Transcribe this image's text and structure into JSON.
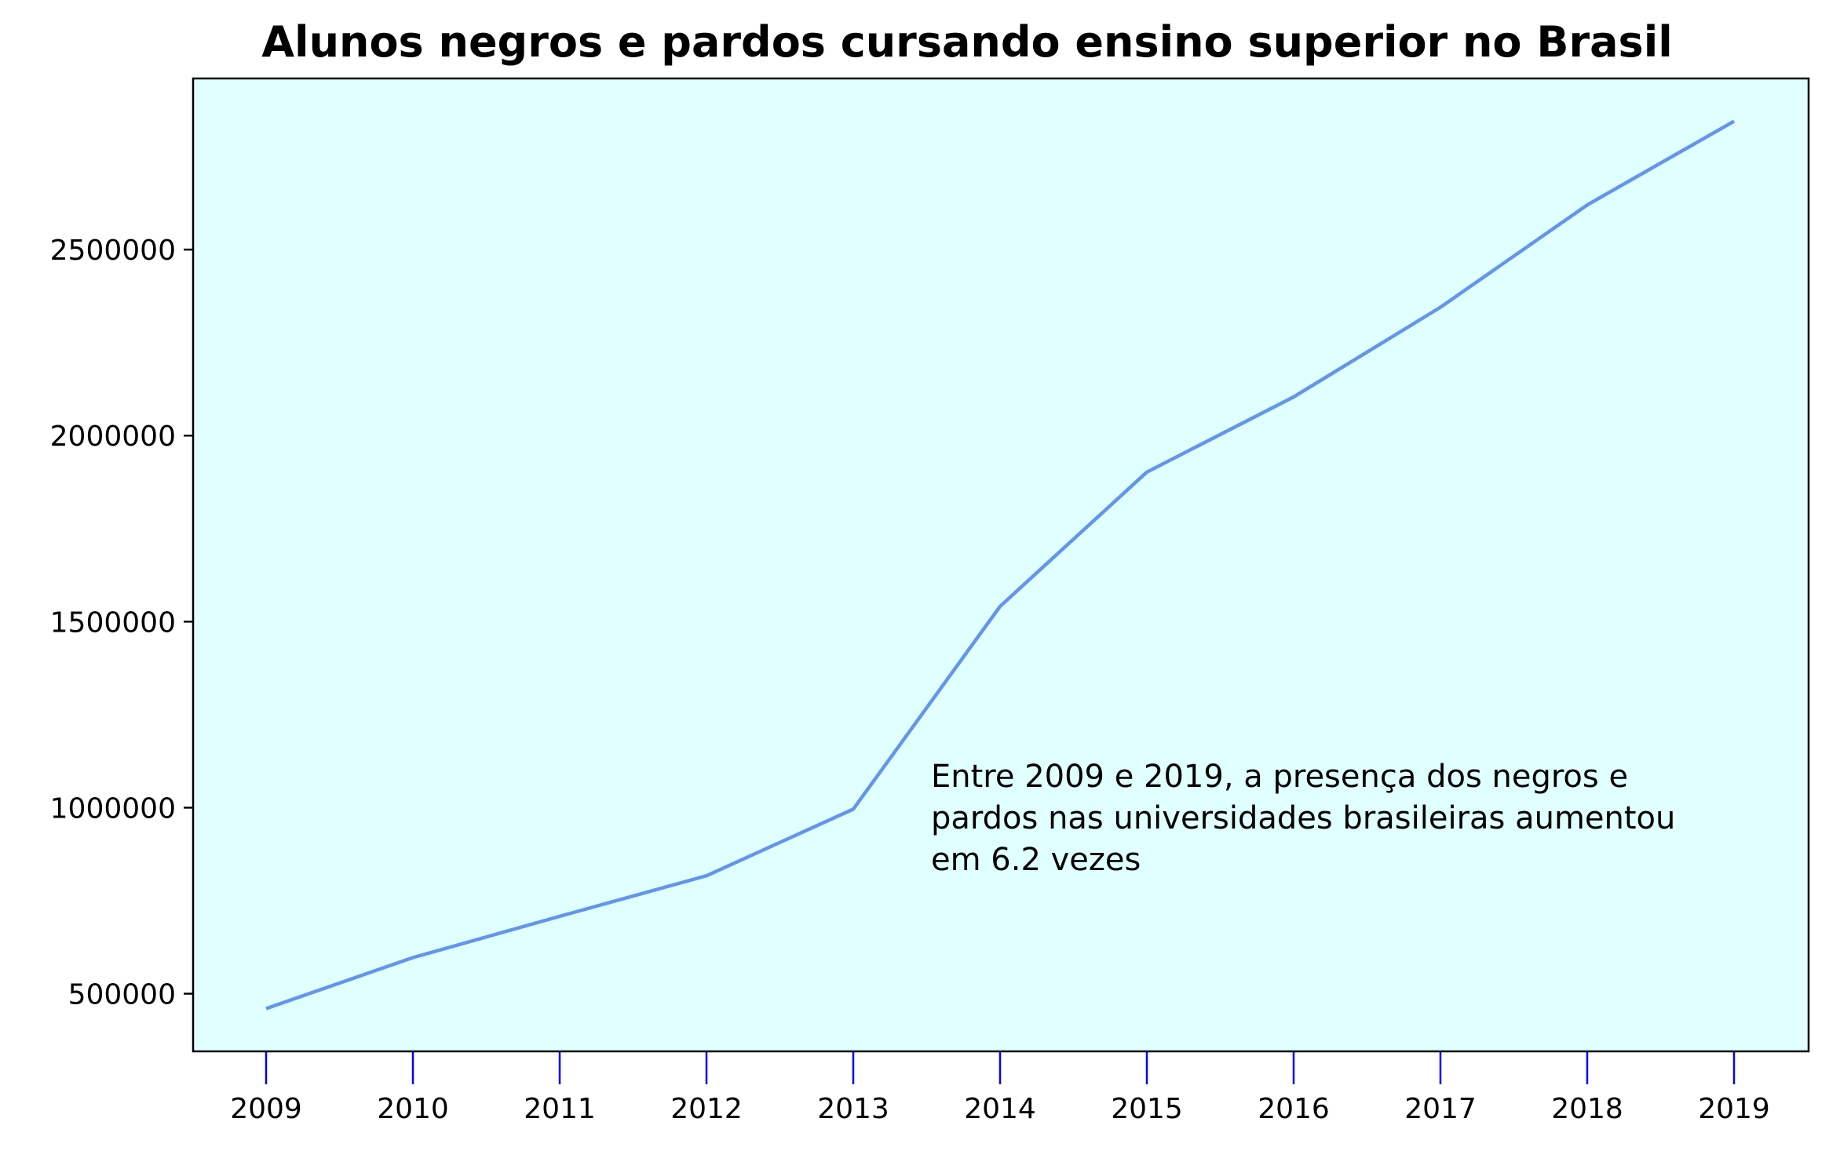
{
  "chart_data": {
    "type": "line",
    "title": "Alunos negros e pardos cursando ensino superior no Brasil",
    "xlabel": "",
    "ylabel": "",
    "x": [
      "2009",
      "2010",
      "2011",
      "2012",
      "2013",
      "2014",
      "2015",
      "2016",
      "2017",
      "2018",
      "2019"
    ],
    "series": [
      {
        "values": [
          460000,
          597000,
          708000,
          817000,
          996000,
          1541000,
          1902000,
          2104000,
          2345000,
          2620000,
          2845000
        ],
        "color": "#6495ED"
      }
    ],
    "y_ticks": [
      "500000",
      "1000000",
      "1500000",
      "2000000",
      "2500000"
    ],
    "y_tick_values": [
      500000,
      1000000,
      1500000,
      2000000,
      2500000
    ],
    "ylim": [
      345000,
      2960000
    ],
    "annotation": {
      "lines": [
        "Entre 2009 e 2019, a presença dos negros e",
        "pardos nas universidades brasileiras aumentou",
        "em 6.2 vezes"
      ]
    },
    "plot_background": "#E0FFFF",
    "x_tick_color": "#0000FF",
    "grid": false,
    "legend": "none"
  }
}
